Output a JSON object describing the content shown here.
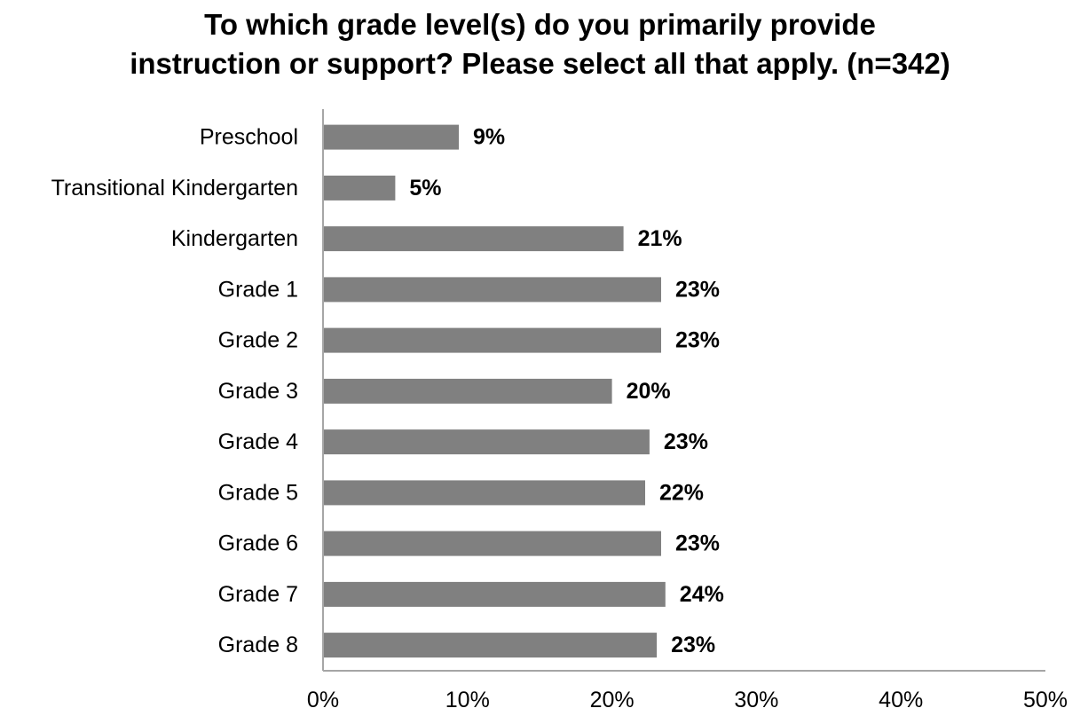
{
  "chart_data": {
    "type": "bar",
    "orientation": "horizontal",
    "title_lines": [
      "To which grade level(s) do you primarily provide",
      "instruction or support? Please select all that apply. (n=342)"
    ],
    "categories": [
      "Preschool",
      "Transitional Kindergarten",
      "Kindergarten",
      "Grade 1",
      "Grade 2",
      "Grade 3",
      "Grade 4",
      "Grade 5",
      "Grade 6",
      "Grade 7",
      "Grade 8"
    ],
    "values": [
      9.4,
      5,
      20.8,
      23.4,
      23.4,
      20,
      22.6,
      22.3,
      23.4,
      23.7,
      23.1
    ],
    "value_labels": [
      "9%",
      "5%",
      "21%",
      "23%",
      "23%",
      "20%",
      "23%",
      "22%",
      "23%",
      "24%",
      "23%"
    ],
    "x_ticks": [
      0,
      10,
      20,
      30,
      40,
      50
    ],
    "x_tick_labels": [
      "0%",
      "10%",
      "20%",
      "30%",
      "40%",
      "50%"
    ],
    "xlim": [
      0,
      50
    ],
    "xlabel": "",
    "ylabel": "",
    "grid": false,
    "legend": "none",
    "bar_color": "#808080",
    "axis_color": "#a6a6a6"
  }
}
